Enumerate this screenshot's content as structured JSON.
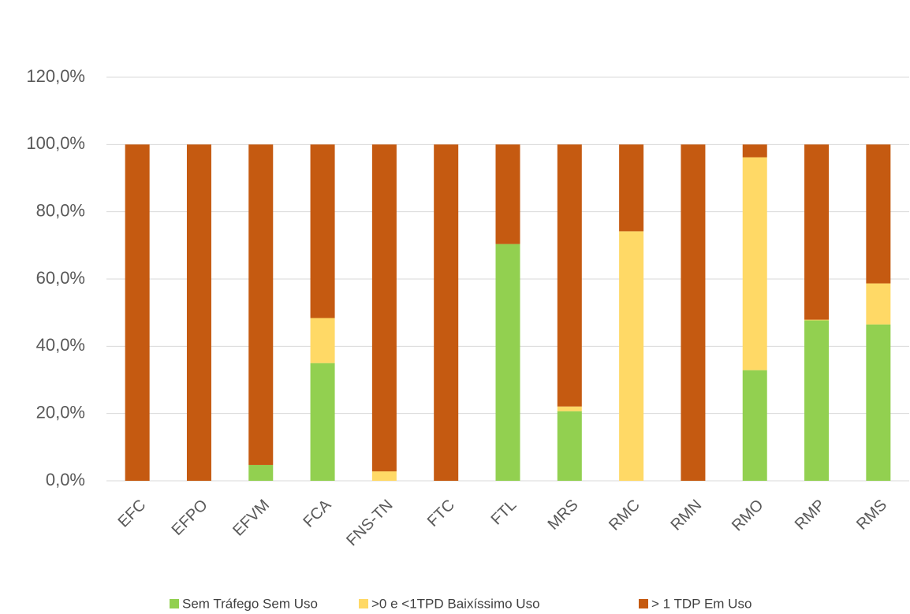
{
  "chart_data": {
    "type": "bar",
    "stacked": true,
    "categories": [
      "EFC",
      "EFPO",
      "EFVM",
      "FCA",
      "FNS-TN",
      "FTC",
      "FTL",
      "MRS",
      "RMC",
      "RMN",
      "RMO",
      "RMP",
      "RMS"
    ],
    "series": [
      {
        "name": "Sem Tráfego Sem Uso",
        "color": "#92d050",
        "values": [
          0,
          0,
          4.7,
          35.0,
          0,
          0,
          70.4,
          20.7,
          0,
          0,
          32.9,
          47.7,
          46.5
        ]
      },
      {
        "name": ">0 e <1TPD Baixíssimo Uso",
        "color": "#ffd966",
        "values": [
          0,
          0,
          0,
          13.4,
          2.8,
          0,
          0,
          1.4,
          74.2,
          0,
          63.3,
          0.2,
          12.2
        ]
      },
      {
        "name": "> 1 TDP Em Uso",
        "color": "#c55a11",
        "values": [
          100,
          100,
          95.3,
          51.6,
          97.2,
          100,
          29.6,
          77.9,
          25.8,
          100,
          3.8,
          52.1,
          41.3
        ]
      }
    ],
    "ylim": [
      0,
      120
    ],
    "yticks": [
      {
        "value": 0,
        "label": "0,0%"
      },
      {
        "value": 20,
        "label": "20,0%"
      },
      {
        "value": 40,
        "label": "40,0%"
      },
      {
        "value": 60,
        "label": "60,0%"
      },
      {
        "value": 80,
        "label": "80,0%"
      },
      {
        "value": 100,
        "label": "100,0%"
      },
      {
        "value": 120,
        "label": "120,0%"
      }
    ],
    "grid": true,
    "legend": "bottom"
  }
}
